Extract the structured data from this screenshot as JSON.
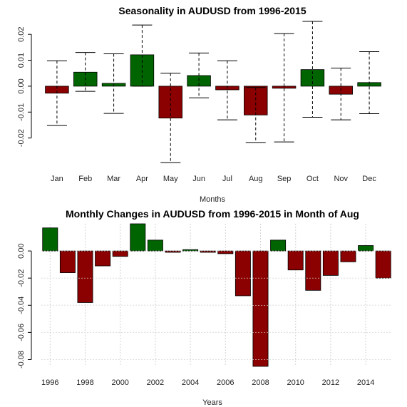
{
  "colors": {
    "positive": "#006400",
    "negative": "#8B0000",
    "grid": "#d3d3d3",
    "whisker": "#000000"
  },
  "chart_data": [
    {
      "type": "bar",
      "title": "Seasonality in AUDUSD from 1996-2015",
      "xlabel": "Months",
      "ylabel": "",
      "categories": [
        "Jan",
        "Feb",
        "Mar",
        "Apr",
        "May",
        "Jun",
        "Jul",
        "Aug",
        "Sep",
        "Oct",
        "Nov",
        "Dec"
      ],
      "values": [
        -0.0027,
        0.0054,
        0.0011,
        0.0121,
        -0.0123,
        0.0041,
        -0.0014,
        -0.0111,
        -0.0008,
        0.0064,
        -0.0031,
        0.0014
      ],
      "error_high": [
        0.0098,
        0.013,
        0.0125,
        0.0236,
        0.005,
        0.0128,
        0.0098,
        -0.0005,
        0.0203,
        0.025,
        0.007,
        0.0133
      ],
      "error_low": [
        -0.0152,
        -0.002,
        -0.0105,
        0.0,
        -0.0295,
        -0.0045,
        -0.013,
        -0.0217,
        -0.0215,
        -0.012,
        -0.013,
        -0.0106
      ],
      "ylim": [
        -0.03,
        0.025
      ],
      "yticks": [
        "0.02",
        "0.01",
        "0.00",
        "-0.01",
        "-0.02"
      ],
      "ytick_values": [
        0.02,
        0.01,
        0.0,
        -0.01,
        -0.02
      ],
      "grid": false
    },
    {
      "type": "bar",
      "title": "Monthly Changes in AUDUSD from 1996-2015 in Month of Aug",
      "xlabel": "Years",
      "ylabel": "",
      "x": [
        1996,
        1997,
        1998,
        1999,
        2000,
        2001,
        2002,
        2003,
        2004,
        2005,
        2006,
        2007,
        2008,
        2009,
        2010,
        2011,
        2012,
        2013,
        2014,
        2015
      ],
      "values": [
        0.017,
        -0.016,
        -0.038,
        -0.011,
        -0.004,
        0.02,
        0.008,
        -0.001,
        0.001,
        -0.001,
        -0.002,
        -0.033,
        -0.085,
        0.008,
        -0.014,
        -0.029,
        -0.018,
        -0.008,
        0.004,
        -0.02
      ],
      "ylim": [
        -0.085,
        0.02
      ],
      "xtick_labels": [
        "1996",
        "1998",
        "2000",
        "2002",
        "2004",
        "2006",
        "2008",
        "2010",
        "2012",
        "2014"
      ],
      "xtick_values": [
        1996,
        1998,
        2000,
        2002,
        2004,
        2006,
        2008,
        2010,
        2012,
        2014
      ],
      "yticks": [
        "0.00",
        "-0.02",
        "-0.04",
        "-0.06",
        "-0.08"
      ],
      "ytick_values": [
        0.0,
        -0.02,
        -0.04,
        -0.06,
        -0.08
      ],
      "grid": true
    }
  ]
}
